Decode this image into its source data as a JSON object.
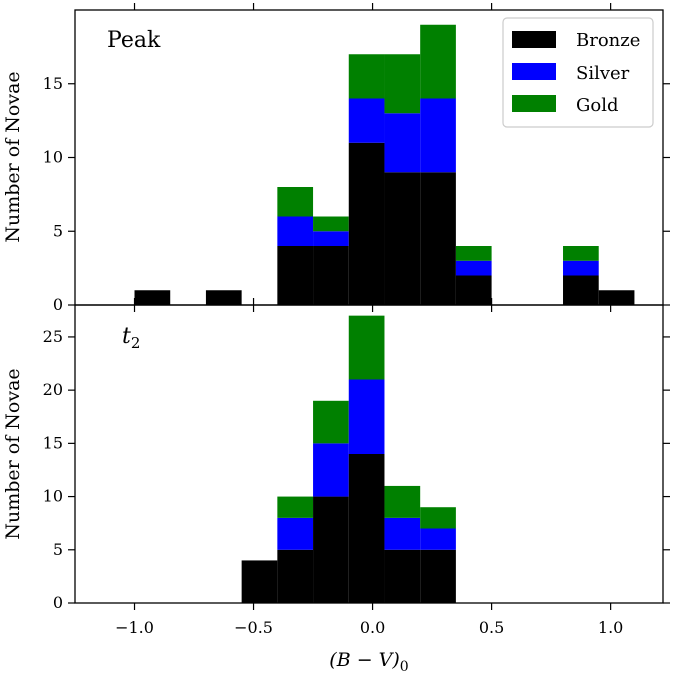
{
  "chart_data": [
    {
      "type": "bar",
      "stacked": true,
      "title": "",
      "annotation": "Peak",
      "xlabel": "",
      "ylabel": "Number of Novae",
      "xlim": [
        -1.25,
        1.22
      ],
      "ylim": [
        0,
        20
      ],
      "yticks": [
        0,
        5,
        10,
        15
      ],
      "ytick_labels": [
        "0",
        "5",
        "10",
        "15"
      ],
      "bin_width": 0.15,
      "bin_left_edges": [
        -1.0,
        -0.7,
        -0.4,
        -0.25,
        -0.1,
        0.05,
        0.2,
        0.35,
        0.8,
        0.95
      ],
      "series": [
        {
          "name": "Bronze",
          "color": "#000000",
          "values": [
            1,
            1,
            4,
            4,
            11,
            9,
            9,
            2,
            2,
            1
          ]
        },
        {
          "name": "Silver",
          "color": "#0000ff",
          "values": [
            0,
            0,
            2,
            1,
            3,
            4,
            5,
            1,
            1,
            0
          ]
        },
        {
          "name": "Gold",
          "color": "#008000",
          "values": [
            0,
            0,
            2,
            1,
            3,
            4,
            5,
            1,
            1,
            0
          ]
        }
      ],
      "legend": {
        "placement": "top-right",
        "entries": [
          "Bronze",
          "Silver",
          "Gold"
        ]
      }
    },
    {
      "type": "bar",
      "stacked": true,
      "title": "",
      "annotation": "t",
      "annotation_subscript": "2",
      "xlabel": "(B − V)",
      "xlabel_subscript": "0",
      "ylabel": "Number of Novae",
      "xlim": [
        -1.25,
        1.22
      ],
      "ylim": [
        0,
        28
      ],
      "xticks": [
        -1.0,
        -0.5,
        0.0,
        0.5,
        1.0
      ],
      "xtick_labels": [
        "−1.0",
        "−0.5",
        "0.0",
        "0.5",
        "1.0"
      ],
      "yticks": [
        0,
        5,
        10,
        15,
        20,
        25
      ],
      "ytick_labels": [
        "0",
        "5",
        "10",
        "15",
        "20",
        "25"
      ],
      "bin_width": 0.15,
      "bin_left_edges": [
        -0.55,
        -0.4,
        -0.25,
        -0.1,
        0.05,
        0.2
      ],
      "series": [
        {
          "name": "Bronze",
          "color": "#000000",
          "values": [
            4,
            5,
            10,
            14,
            5,
            5
          ]
        },
        {
          "name": "Silver",
          "color": "#0000ff",
          "values": [
            0,
            3,
            5,
            7,
            3,
            2
          ]
        },
        {
          "name": "Gold",
          "color": "#008000",
          "values": [
            0,
            2,
            4,
            6,
            3,
            2
          ]
        }
      ]
    }
  ]
}
